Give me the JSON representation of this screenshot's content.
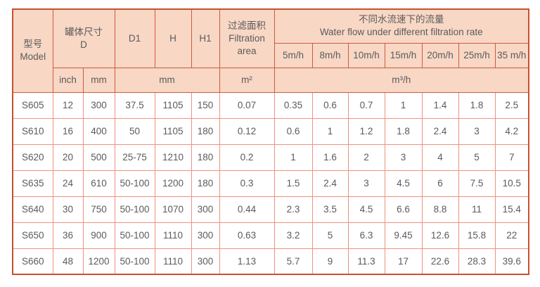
{
  "colors": {
    "header_bg": "#f8d7c5",
    "strong_border": "#cd5b3c",
    "light_border": "#ee9280",
    "outer_border": "#c8502e",
    "text": "#5b5b5b"
  },
  "table": {
    "header": {
      "model": {
        "zh": "型号",
        "en": "Model"
      },
      "tank_size": {
        "zh": "罐体尺寸",
        "en": "D"
      },
      "d1": "D1",
      "h": "H",
      "h1": "H1",
      "filtration_area": {
        "zh": "过滤面积",
        "en": "Filtration area"
      },
      "water_flow": {
        "zh": "不同水流速下的流量",
        "en": "Water flow under different filtration rate"
      },
      "flow_rates": [
        "5m/h",
        "8m/h",
        "10m/h",
        "15m/h",
        "20m/h",
        "25m/h",
        "35 m/h"
      ]
    },
    "units": {
      "inch": "inch",
      "mm_d": "mm",
      "mm_dims": "mm",
      "area": "m²",
      "flow": "m³/h"
    },
    "rows": [
      [
        "S605",
        "12",
        "300",
        "37.5",
        "1105",
        "150",
        "0.07",
        "0.35",
        "0.6",
        "0.7",
        "1",
        "1.4",
        "1.8",
        "2.5"
      ],
      [
        "S610",
        "16",
        "400",
        "50",
        "1105",
        "180",
        "0.12",
        "0.6",
        "1",
        "1.2",
        "1.8",
        "2.4",
        "3",
        "4.2"
      ],
      [
        "S620",
        "20",
        "500",
        "25-75",
        "1210",
        "180",
        "0.2",
        "1",
        "1.6",
        "2",
        "3",
        "4",
        "5",
        "7"
      ],
      [
        "S635",
        "24",
        "610",
        "50-100",
        "1200",
        "180",
        "0.3",
        "1.5",
        "2.4",
        "3",
        "4.5",
        "6",
        "7.5",
        "10.5"
      ],
      [
        "S640",
        "30",
        "750",
        "50-100",
        "1070",
        "300",
        "0.44",
        "2.3",
        "3.5",
        "4.5",
        "6.6",
        "8.8",
        "11",
        "15.4"
      ],
      [
        "S650",
        "36",
        "900",
        "50-100",
        "1110",
        "300",
        "0.63",
        "3.2",
        "5",
        "6.3",
        "9.45",
        "12.6",
        "15.8",
        "22"
      ],
      [
        "S660",
        "48",
        "1200",
        "50-100",
        "1110",
        "300",
        "1.13",
        "5.7",
        "9",
        "11.3",
        "17",
        "22.6",
        "28.3",
        "39.6"
      ]
    ]
  }
}
